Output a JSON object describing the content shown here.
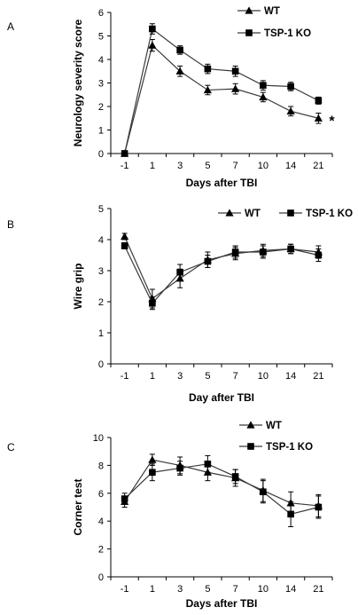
{
  "chart_data": [
    {
      "panel": "A",
      "type": "line",
      "categories": [
        "-1",
        "1",
        "3",
        "5",
        "7",
        "10",
        "14",
        "21"
      ],
      "xlabel": "Days after TBI",
      "ylabel": "Neurology severity score",
      "ylim": [
        0,
        6
      ],
      "yticks": [
        0,
        1,
        2,
        3,
        4,
        5,
        6
      ],
      "annotation": "*",
      "grid": false,
      "legend_position": "top-right",
      "series": [
        {
          "name": "WT",
          "marker": "triangle",
          "values": [
            0,
            4.6,
            3.5,
            2.7,
            2.75,
            2.4,
            1.8,
            1.5
          ],
          "errors": [
            0,
            0.25,
            0.22,
            0.2,
            0.22,
            0.2,
            0.2,
            0.22
          ]
        },
        {
          "name": "TSP-1 KO",
          "marker": "square",
          "values": [
            0,
            5.3,
            4.4,
            3.6,
            3.5,
            2.9,
            2.85,
            2.25
          ],
          "errors": [
            0,
            0.22,
            0.18,
            0.2,
            0.22,
            0.2,
            0.18,
            0.15
          ]
        }
      ]
    },
    {
      "panel": "B",
      "type": "line",
      "categories": [
        "-1",
        "1",
        "3",
        "5",
        "7",
        "10",
        "14",
        "21"
      ],
      "xlabel": "Day after TBI",
      "ylabel": "Wire grip",
      "ylim": [
        0,
        5
      ],
      "yticks": [
        0,
        1,
        2,
        3,
        4,
        5
      ],
      "grid": false,
      "legend_position": "top-right",
      "series": [
        {
          "name": "WT",
          "marker": "triangle",
          "values": [
            4.1,
            2.1,
            2.75,
            3.35,
            3.55,
            3.65,
            3.7,
            3.6
          ],
          "errors": [
            0.1,
            0.3,
            0.3,
            0.25,
            0.2,
            0.2,
            0.15,
            0.2
          ]
        },
        {
          "name": "TSP-1 KO",
          "marker": "square",
          "values": [
            3.8,
            1.95,
            2.95,
            3.3,
            3.6,
            3.6,
            3.7,
            3.5
          ],
          "errors": [
            0.1,
            0.2,
            0.25,
            0.2,
            0.2,
            0.2,
            0.15,
            0.2
          ]
        }
      ]
    },
    {
      "panel": "C",
      "type": "line",
      "categories": [
        "-1",
        "1",
        "3",
        "5",
        "7",
        "10",
        "14",
        "21"
      ],
      "xlabel": "Days after TBI",
      "ylabel": "Corner test",
      "ylim": [
        0,
        10
      ],
      "yticks": [
        0,
        2,
        4,
        6,
        8,
        10
      ],
      "grid": false,
      "legend_position": "top-right",
      "series": [
        {
          "name": "WT",
          "marker": "triangle",
          "values": [
            5.4,
            8.4,
            8.0,
            7.5,
            7.1,
            6.2,
            5.3,
            5.1
          ],
          "errors": [
            0.4,
            0.4,
            0.6,
            0.6,
            0.6,
            0.8,
            0.8,
            0.8
          ]
        },
        {
          "name": "TSP-1 KO",
          "marker": "square",
          "values": [
            5.6,
            7.5,
            7.8,
            8.1,
            7.2,
            6.1,
            4.5,
            5.0
          ],
          "errors": [
            0.4,
            0.6,
            0.5,
            0.6,
            0.5,
            0.8,
            0.9,
            0.8
          ]
        }
      ]
    }
  ]
}
